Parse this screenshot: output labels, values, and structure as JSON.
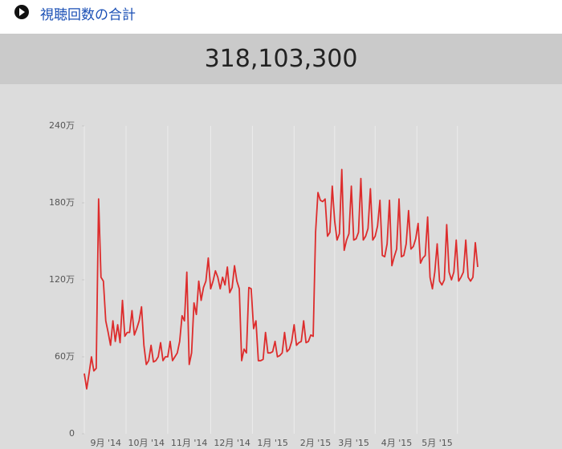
{
  "header": {
    "title": "視聴回数の合計"
  },
  "total": "318,103,300",
  "chart_data": {
    "type": "line",
    "color": "#dd2c2c",
    "ylim": [
      0,
      240
    ],
    "yticks": [
      0,
      {
        "value": 60,
        "label": "60万"
      },
      {
        "value": 120,
        "label": "120万"
      },
      {
        "value": 180,
        "label": "180万"
      },
      {
        "value": 240,
        "label": "240万"
      }
    ],
    "categories": [
      null,
      null,
      null,
      null,
      null,
      null,
      null,
      null,
      null,
      "9月 '14",
      null,
      null,
      null,
      null,
      null,
      null,
      null,
      null,
      null,
      null,
      null,
      null,
      null,
      null,
      null,
      null,
      "10月 '14",
      null,
      null,
      null,
      null,
      null,
      null,
      null,
      null,
      null,
      null,
      null,
      null,
      null,
      null,
      null,
      null,
      null,
      "11月 '14",
      null,
      null,
      null,
      null,
      null,
      null,
      null,
      null,
      null,
      null,
      null,
      null,
      null,
      null,
      null,
      null,
      null,
      "12月 '14",
      null,
      null,
      null,
      null,
      null,
      null,
      null,
      null,
      null,
      null,
      null,
      null,
      null,
      null,
      null,
      null,
      "1月 '15",
      null,
      null,
      null,
      null,
      null,
      null,
      null,
      null,
      null,
      null,
      null,
      null,
      null,
      null,
      null,
      null,
      null,
      "2月 '15",
      null,
      null,
      null,
      null,
      null,
      null,
      null,
      null,
      null,
      null,
      null,
      null,
      null,
      null,
      null,
      "3月 '15",
      null,
      null,
      null,
      null,
      null,
      null,
      null,
      null,
      null,
      null,
      null,
      null,
      null,
      null,
      null,
      null,
      null,
      "4月 '15",
      null,
      null,
      null,
      null,
      null,
      null,
      null,
      null,
      null,
      null,
      null,
      null,
      null,
      null,
      null,
      null,
      "5月 '15",
      null,
      null,
      null,
      null,
      null,
      null,
      null,
      null,
      null,
      null,
      null,
      null,
      null,
      null,
      null,
      null,
      null
    ],
    "values": [
      47,
      35,
      47,
      60,
      49,
      51,
      183,
      122,
      119,
      88,
      79,
      69,
      88,
      72,
      85,
      71,
      104,
      76,
      79,
      79,
      96,
      77,
      82,
      88,
      99,
      69,
      54,
      57,
      69,
      56,
      57,
      60,
      71,
      57,
      60,
      60,
      72,
      57,
      60,
      63,
      72,
      92,
      88,
      126,
      54,
      63,
      102,
      93,
      119,
      104,
      114,
      119,
      137,
      113,
      119,
      127,
      122,
      113,
      122,
      116,
      130,
      110,
      114,
      131,
      119,
      113,
      57,
      66,
      63,
      114,
      113,
      82,
      88,
      57,
      57,
      58,
      79,
      63,
      63,
      64,
      72,
      60,
      61,
      63,
      79,
      64,
      66,
      72,
      85,
      69,
      71,
      72,
      88,
      71,
      72,
      77,
      76,
      157,
      188,
      182,
      181,
      183,
      154,
      157,
      193,
      166,
      151,
      156,
      206,
      143,
      151,
      156,
      193,
      151,
      152,
      157,
      199,
      151,
      154,
      160,
      191,
      151,
      154,
      162,
      182,
      139,
      138,
      148,
      182,
      131,
      138,
      144,
      183,
      138,
      139,
      148,
      174,
      144,
      146,
      152,
      164,
      133,
      137,
      139,
      169,
      122,
      113,
      126,
      148,
      119,
      116,
      120,
      163,
      126,
      120,
      126,
      151,
      119,
      122,
      126,
      151,
      122,
      119,
      122,
      149,
      130
    ]
  }
}
